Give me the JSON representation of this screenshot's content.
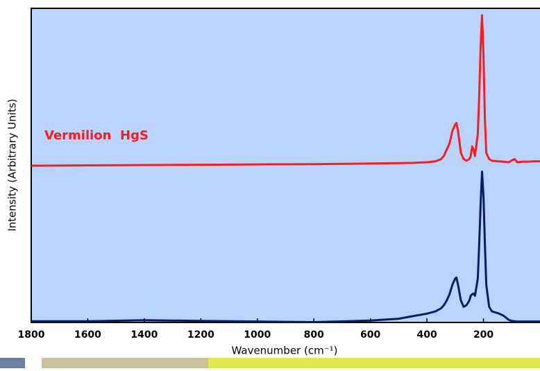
{
  "chart_data": {
    "type": "line",
    "x_label": "Wavenumber (cm⁻¹)",
    "y_label": "Intensity (Arbitrary Units)",
    "annotation": "Vermilion  HgS",
    "annotation_color": "#ff1a1a",
    "x": [
      1800,
      1600,
      1400,
      1200,
      1000,
      800,
      600,
      500,
      450,
      400,
      370,
      350,
      340,
      330,
      320,
      310,
      300,
      296,
      290,
      280,
      270,
      260,
      250,
      245,
      240,
      235,
      230,
      220,
      215,
      210,
      205,
      200,
      195,
      190,
      180,
      170,
      150,
      130,
      110,
      100,
      90,
      80,
      60,
      40,
      20,
      0
    ],
    "series": [
      {
        "color": "#ff1a1a",
        "values": [
          49.9,
          50,
          50.1,
          50.2,
          50.3,
          50.4,
          50.6,
          50.7,
          50.8,
          51,
          51.3,
          52,
          53,
          55,
          57,
          61,
          63,
          63.5,
          61,
          54,
          52,
          51.5,
          52,
          53,
          56,
          55,
          53,
          60,
          72,
          88,
          97.8,
          85,
          65,
          54,
          52,
          51.5,
          51.3,
          51.2,
          51,
          51.6,
          52,
          51,
          51.2,
          51.2,
          51.3,
          51.3
        ]
      },
      {
        "color": "#0d1a66",
        "values": [
          0.4,
          0.4,
          0.7,
          0.5,
          0.3,
          0.1,
          0.6,
          1.2,
          2,
          2.8,
          3.5,
          4.5,
          5.5,
          7,
          9,
          12,
          14,
          14.3,
          12,
          7,
          5,
          5.5,
          7,
          8.5,
          9,
          9.2,
          8.5,
          14,
          25,
          38,
          48,
          40,
          25,
          12,
          5,
          3.5,
          3,
          2.2,
          0.8,
          0.5,
          0.4,
          0.3,
          0.3,
          0.3,
          0.3,
          0.3
        ]
      }
    ],
    "xlim": [
      1800,
      0
    ],
    "xticks": [
      1800,
      1600,
      1400,
      1200,
      1000,
      800,
      600,
      400,
      200
    ],
    "ylim": [
      0,
      100
    ],
    "background": "#b8d4ff"
  }
}
